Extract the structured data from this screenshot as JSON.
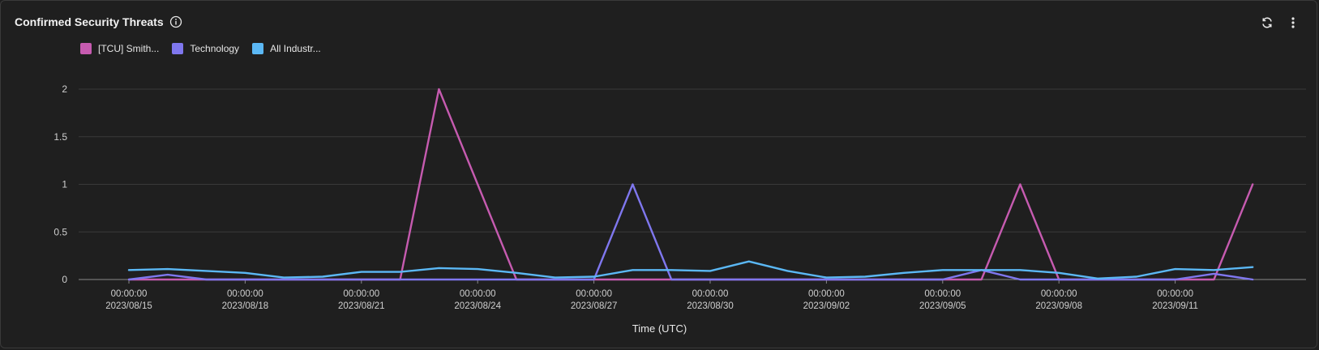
{
  "header": {
    "title": "Confirmed Security Threats",
    "info_icon": "info-icon",
    "refresh_icon": "refresh-icon",
    "menu_icon": "more-vertical-icon"
  },
  "legend": [
    {
      "label": "[TCU] Smith...",
      "color": "#c65bb0"
    },
    {
      "label": "Technology",
      "color": "#7f77ee"
    },
    {
      "label": "All Industr...",
      "color": "#5bb8f5"
    }
  ],
  "chart_data": {
    "type": "line",
    "xlabel": "Time (UTC)",
    "ylabel": "",
    "ylim": [
      0,
      2
    ],
    "y_ticks": [
      "0",
      "0.5",
      "1",
      "1.5",
      "2"
    ],
    "x_ticks": [
      {
        "time": "00:00:00",
        "date": "2023/08/15"
      },
      {
        "time": "00:00:00",
        "date": "2023/08/18"
      },
      {
        "time": "00:00:00",
        "date": "2023/08/21"
      },
      {
        "time": "00:00:00",
        "date": "2023/08/24"
      },
      {
        "time": "00:00:00",
        "date": "2023/08/27"
      },
      {
        "time": "00:00:00",
        "date": "2023/08/30"
      },
      {
        "time": "00:00:00",
        "date": "2023/09/02"
      },
      {
        "time": "00:00:00",
        "date": "2023/09/05"
      },
      {
        "time": "00:00:00",
        "date": "2023/09/08"
      },
      {
        "time": "00:00:00",
        "date": "2023/09/11"
      }
    ],
    "x": [
      "2023/08/15",
      "2023/08/16",
      "2023/08/17",
      "2023/08/18",
      "2023/08/19",
      "2023/08/20",
      "2023/08/21",
      "2023/08/22",
      "2023/08/23",
      "2023/08/24",
      "2023/08/25",
      "2023/08/26",
      "2023/08/27",
      "2023/08/28",
      "2023/08/29",
      "2023/08/30",
      "2023/08/31",
      "2023/09/01",
      "2023/09/02",
      "2023/09/03",
      "2023/09/04",
      "2023/09/05",
      "2023/09/06",
      "2023/09/07",
      "2023/09/08",
      "2023/09/09",
      "2023/09/10",
      "2023/09/11",
      "2023/09/12",
      "2023/09/13"
    ],
    "series": [
      {
        "name": "[TCU] Smith...",
        "color": "#c65bb0",
        "values": [
          0,
          0,
          0,
          0,
          0,
          0,
          0,
          0,
          2,
          1,
          0,
          0,
          0,
          0,
          0,
          0,
          0,
          0,
          0,
          0,
          0,
          0,
          0,
          1,
          0,
          0,
          0,
          0,
          0,
          1
        ]
      },
      {
        "name": "Technology",
        "color": "#7f77ee",
        "values": [
          0,
          0.05,
          0,
          0,
          0,
          0,
          0,
          0,
          0,
          0,
          0,
          0,
          0,
          1,
          0,
          0,
          0,
          0,
          0,
          0,
          0,
          0,
          0.1,
          0,
          0,
          0,
          0,
          0,
          0.06,
          0
        ]
      },
      {
        "name": "All Industr...",
        "color": "#5bb8f5",
        "values": [
          0.1,
          0.11,
          0.09,
          0.07,
          0.02,
          0.03,
          0.08,
          0.08,
          0.12,
          0.11,
          0.07,
          0.02,
          0.03,
          0.1,
          0.1,
          0.09,
          0.19,
          0.09,
          0.02,
          0.03,
          0.07,
          0.1,
          0.1,
          0.1,
          0.07,
          0.01,
          0.03,
          0.11,
          0.1,
          0.13
        ]
      }
    ],
    "grid": true,
    "legend_position": "top-left"
  }
}
